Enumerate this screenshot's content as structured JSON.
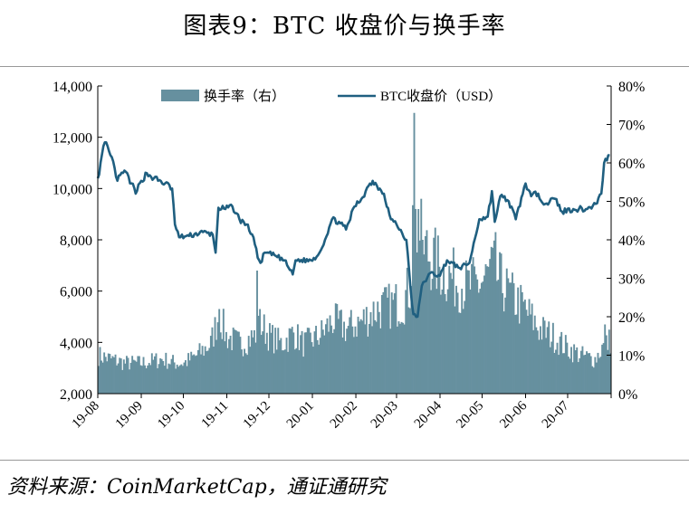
{
  "figure": {
    "title": "图表9：BTC 收盘价与换手率",
    "source": "资料来源：CoinMarketCap，通证通研究"
  },
  "colors": {
    "bar": "#66909f",
    "line": "#1f5f80"
  },
  "chart_data": {
    "type": "bar+line",
    "x_ticks": [
      "19-08",
      "19-09",
      "19-10",
      "19-11",
      "19-12",
      "20-01",
      "20-02",
      "20-03",
      "20-04",
      "20-05",
      "20-06",
      "20-07"
    ],
    "y_left": {
      "min": 2000,
      "max": 14000,
      "ticks": [
        "2,000",
        "4,000",
        "6,000",
        "8,000",
        "10,000",
        "12,000",
        "14,000"
      ]
    },
    "y_right": {
      "min": 0,
      "max": 80,
      "ticks": [
        "0%",
        "10%",
        "20%",
        "30%",
        "40%",
        "50%",
        "60%",
        "70%",
        "80%"
      ]
    },
    "legend": {
      "position": "top",
      "bar_label": "换手率（右）",
      "line_label": "BTC收盘价（USD）"
    },
    "series": [
      {
        "name": "换手率（右）",
        "type": "bar",
        "axis": "right",
        "unit": "%",
        "anchors": [
          [
            "2019-08-01",
            10
          ],
          [
            "2019-08-10",
            9
          ],
          [
            "2019-08-20",
            8
          ],
          [
            "2019-09-01",
            8
          ],
          [
            "2019-09-15",
            9
          ],
          [
            "2019-09-25",
            8
          ],
          [
            "2019-10-01",
            8
          ],
          [
            "2019-10-10",
            10
          ],
          [
            "2019-10-20",
            13
          ],
          [
            "2019-10-26",
            21
          ],
          [
            "2019-10-31",
            15
          ],
          [
            "2019-11-10",
            13
          ],
          [
            "2019-11-20",
            15
          ],
          [
            "2019-11-25",
            18
          ],
          [
            "2019-12-01",
            15
          ],
          [
            "2019-12-10",
            13
          ],
          [
            "2019-12-18",
            16
          ],
          [
            "2019-12-25",
            13
          ],
          [
            "2020-01-05",
            15
          ],
          [
            "2020-01-15",
            19
          ],
          [
            "2020-01-25",
            17
          ],
          [
            "2020-02-05",
            19
          ],
          [
            "2020-02-15",
            22
          ],
          [
            "2020-02-25",
            23
          ],
          [
            "2020-03-05",
            24
          ],
          [
            "2020-03-10",
            28
          ],
          [
            "2020-03-13",
            45
          ],
          [
            "2020-03-20",
            38
          ],
          [
            "2020-03-31",
            33
          ],
          [
            "2020-04-10",
            30
          ],
          [
            "2020-04-20",
            28
          ],
          [
            "2020-04-30",
            29
          ],
          [
            "2020-05-08",
            32
          ],
          [
            "2020-05-12",
            30
          ],
          [
            "2020-05-20",
            26
          ],
          [
            "2020-05-31",
            22
          ],
          [
            "2020-06-10",
            17
          ],
          [
            "2020-06-20",
            15
          ],
          [
            "2020-06-30",
            12
          ],
          [
            "2020-07-10",
            10
          ],
          [
            "2020-07-20",
            9
          ],
          [
            "2020-07-25",
            12
          ],
          [
            "2020-07-31",
            14
          ]
        ],
        "spikes": [
          [
            "2019-10-26",
            22
          ],
          [
            "2019-11-22",
            32
          ],
          [
            "2019-11-24",
            22
          ],
          [
            "2020-03-12",
            49
          ],
          [
            "2020-03-13",
            73
          ],
          [
            "2020-03-16",
            48
          ],
          [
            "2020-03-19",
            40
          ],
          [
            "2020-05-10",
            42
          ],
          [
            "2020-05-19",
            30
          ],
          [
            "2020-07-27",
            18
          ]
        ]
      },
      {
        "name": "BTC收盘价（USD）",
        "type": "line",
        "axis": "left",
        "unit": "USD",
        "points": [
          [
            "2019-08-01",
            10400
          ],
          [
            "2019-08-06",
            11800
          ],
          [
            "2019-08-10",
            11300
          ],
          [
            "2019-08-13",
            10800
          ],
          [
            "2019-08-15",
            10300
          ],
          [
            "2019-08-20",
            10700
          ],
          [
            "2019-08-25",
            10200
          ],
          [
            "2019-08-28",
            9800
          ],
          [
            "2019-09-01",
            10300
          ],
          [
            "2019-09-05",
            10600
          ],
          [
            "2019-09-10",
            10400
          ],
          [
            "2019-09-18",
            10200
          ],
          [
            "2019-09-23",
            10000
          ],
          [
            "2019-09-25",
            8600
          ],
          [
            "2019-09-28",
            8100
          ],
          [
            "2019-10-05",
            8150
          ],
          [
            "2019-10-15",
            8300
          ],
          [
            "2019-10-22",
            8200
          ],
          [
            "2019-10-24",
            7500
          ],
          [
            "2019-10-26",
            9250
          ],
          [
            "2019-10-31",
            9200
          ],
          [
            "2019-11-05",
            9300
          ],
          [
            "2019-11-10",
            8800
          ],
          [
            "2019-11-15",
            8600
          ],
          [
            "2019-11-20",
            8100
          ],
          [
            "2019-11-23",
            7300
          ],
          [
            "2019-11-25",
            7100
          ],
          [
            "2019-11-28",
            7500
          ],
          [
            "2019-12-05",
            7400
          ],
          [
            "2019-12-12",
            7200
          ],
          [
            "2019-12-18",
            6650
          ],
          [
            "2019-12-20",
            7200
          ],
          [
            "2019-12-31",
            7200
          ],
          [
            "2020-01-05",
            7400
          ],
          [
            "2020-01-10",
            8000
          ],
          [
            "2020-01-15",
            8800
          ],
          [
            "2020-01-20",
            8700
          ],
          [
            "2020-01-25",
            8400
          ],
          [
            "2020-01-31",
            9300
          ],
          [
            "2020-02-05",
            9600
          ],
          [
            "2020-02-10",
            10100
          ],
          [
            "2020-02-13",
            10300
          ],
          [
            "2020-02-18",
            10000
          ],
          [
            "2020-02-21",
            9800
          ],
          [
            "2020-02-26",
            8800
          ],
          [
            "2020-03-01",
            8600
          ],
          [
            "2020-03-08",
            8000
          ],
          [
            "2020-03-12",
            5500
          ],
          [
            "2020-03-13",
            5100
          ],
          [
            "2020-03-16",
            5000
          ],
          [
            "2020-03-19",
            6200
          ],
          [
            "2020-03-25",
            6700
          ],
          [
            "2020-04-01",
            6600
          ],
          [
            "2020-04-06",
            7200
          ],
          [
            "2020-04-15",
            6900
          ],
          [
            "2020-04-22",
            7100
          ],
          [
            "2020-04-29",
            8800
          ],
          [
            "2020-05-05",
            8900
          ],
          [
            "2020-05-08",
            9900
          ],
          [
            "2020-05-10",
            8700
          ],
          [
            "2020-05-14",
            9700
          ],
          [
            "2020-05-20",
            9500
          ],
          [
            "2020-05-25",
            8800
          ],
          [
            "2020-06-01",
            10200
          ],
          [
            "2020-06-05",
            9700
          ],
          [
            "2020-06-10",
            9800
          ],
          [
            "2020-06-15",
            9400
          ],
          [
            "2020-06-22",
            9600
          ],
          [
            "2020-06-27",
            9100
          ],
          [
            "2020-07-05",
            9200
          ],
          [
            "2020-07-15",
            9200
          ],
          [
            "2020-07-21",
            9400
          ],
          [
            "2020-07-25",
            9800
          ],
          [
            "2020-07-27",
            11000
          ],
          [
            "2020-07-31",
            11300
          ]
        ]
      }
    ]
  }
}
